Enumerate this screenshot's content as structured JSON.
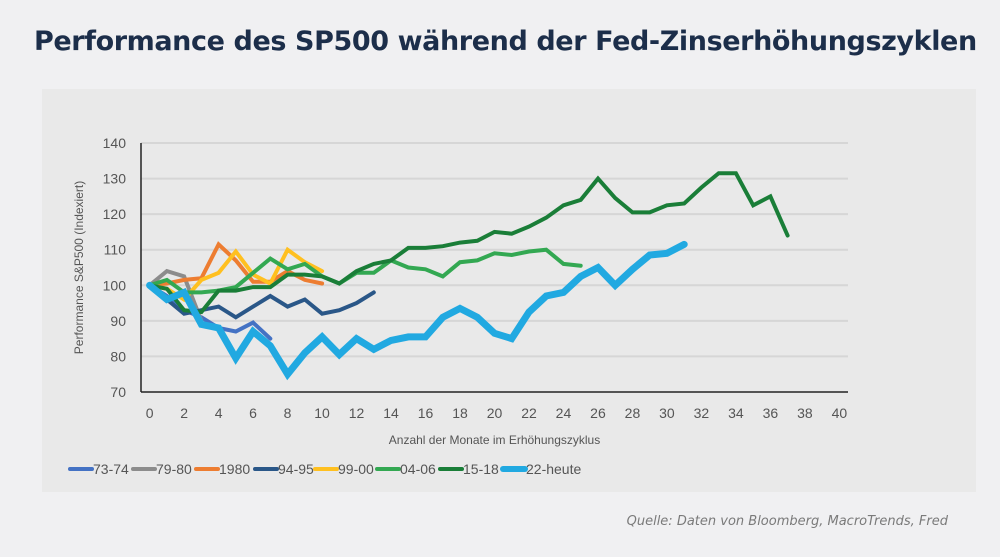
{
  "header": {
    "title": "Performance des SP500 während der Fed-Zinserhöhungszyklen"
  },
  "footer": {
    "source": "Quelle: Daten von Bloomberg, MacroTrends, Fred"
  },
  "chart_data": {
    "type": "line",
    "title": "Performance des SP500 während der Fed-Zinserhöhungszyklen",
    "xlabel": "Anzahl der Monate im Erhöhungszyklus",
    "ylabel": "Performance S&P500 (Indexiert)",
    "xlim": [
      0,
      40
    ],
    "ylim": [
      70,
      140
    ],
    "x_ticks": [
      "0",
      "2",
      "4",
      "6",
      "8",
      "10",
      "12",
      "14",
      "16",
      "18",
      "20",
      "22",
      "24",
      "26",
      "28",
      "30",
      "32",
      "34",
      "36",
      "38",
      "40"
    ],
    "y_ticks": [
      "70",
      "80",
      "90",
      "100",
      "110",
      "120",
      "130",
      "140"
    ],
    "grid": "horizontal",
    "legend_position": "bottom",
    "series": [
      {
        "name": "73-74",
        "color": "#4472c4",
        "weight": "normal",
        "values": [
          100,
          97,
          93,
          91,
          88,
          87,
          89.5,
          85
        ]
      },
      {
        "name": "79-80",
        "color": "#8c8c8c",
        "weight": "normal",
        "values": [
          100,
          104,
          102.5,
          90
        ]
      },
      {
        "name": "1980",
        "color": "#ed7d31",
        "weight": "normal",
        "values": [
          100,
          100.5,
          101.5,
          102,
          111.5,
          107,
          101,
          101,
          104,
          101.5,
          100.5
        ]
      },
      {
        "name": "94-95",
        "color": "#2a5788",
        "weight": "normal",
        "values": [
          100,
          96,
          92,
          93,
          94,
          91,
          94,
          97,
          94,
          96,
          92,
          93,
          95,
          98
        ]
      },
      {
        "name": "99-00",
        "color": "#ffc020",
        "weight": "normal",
        "values": [
          100,
          99,
          96,
          101.5,
          103.5,
          109.5,
          103,
          100.5,
          110,
          106.5,
          104
        ]
      },
      {
        "name": "04-06",
        "color": "#33a852",
        "weight": "normal",
        "values": [
          100,
          101.5,
          98,
          98,
          98.5,
          99.5,
          103.5,
          107.5,
          104.5,
          106,
          102.5,
          100.5,
          103.5,
          103.5,
          107,
          105,
          104.5,
          102.5,
          106.5,
          107,
          109,
          108.5,
          109.5,
          110,
          106,
          105.5
        ]
      },
      {
        "name": "15-18",
        "color": "#1a7e38",
        "weight": "normal",
        "values": [
          100,
          99,
          93,
          92.5,
          98.5,
          98.5,
          99.5,
          99.5,
          103,
          103,
          102.5,
          100.5,
          104,
          106,
          107,
          110.5,
          110.5,
          111,
          112,
          112.5,
          115,
          114.5,
          116.5,
          119,
          122.5,
          124,
          130,
          124.5,
          120.5,
          120.5,
          122.5,
          123,
          127.5,
          131.5,
          131.5,
          122.5,
          125,
          114
        ]
      },
      {
        "name": "22-heute",
        "color": "#21a9e1",
        "weight": "bold",
        "values": [
          100,
          96,
          98,
          89,
          88,
          79.5,
          87,
          83,
          75,
          81,
          85.5,
          80.5,
          85,
          82,
          84.5,
          85.5,
          85.5,
          91,
          93.5,
          91,
          86.5,
          85,
          92.5,
          97,
          98,
          102.5,
          105,
          100,
          104.5,
          108.5,
          109,
          111.5
        ]
      }
    ]
  }
}
